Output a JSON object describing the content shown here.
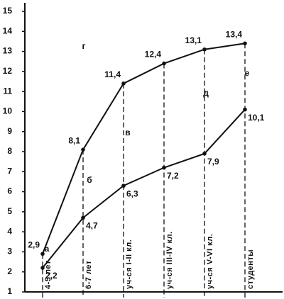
{
  "chart_data": {
    "type": "line",
    "categories": [
      "4-5 лет",
      "6-7 лет",
      "уч-ся I-II кл.",
      "уч-ся III-IV кл.",
      "уч-ся V-VI кл.",
      "студенты"
    ],
    "series": [
      {
        "color": "#111111",
        "values": [
          2.9,
          8.1,
          11.4,
          12.4,
          13.1,
          13.4
        ],
        "value_labels": [
          "2,9",
          "8,1",
          "11,4",
          "12,4",
          "13,1",
          "13,4"
        ]
      },
      {
        "color": "#111111",
        "values": [
          2.2,
          4.7,
          6.3,
          7.2,
          7.9,
          10.1
        ],
        "value_labels": [
          "2,2",
          "4,7",
          "6,3",
          "7,2",
          "7,9",
          "10,1"
        ]
      }
    ],
    "annotations": [
      "а",
      "б",
      "в",
      "г",
      "д",
      "е"
    ],
    "ylim": [
      1,
      15
    ],
    "yticks": [
      1,
      2,
      3,
      4,
      5,
      6,
      7,
      8,
      9,
      10,
      11,
      12,
      13,
      14,
      15
    ],
    "grid": false
  }
}
